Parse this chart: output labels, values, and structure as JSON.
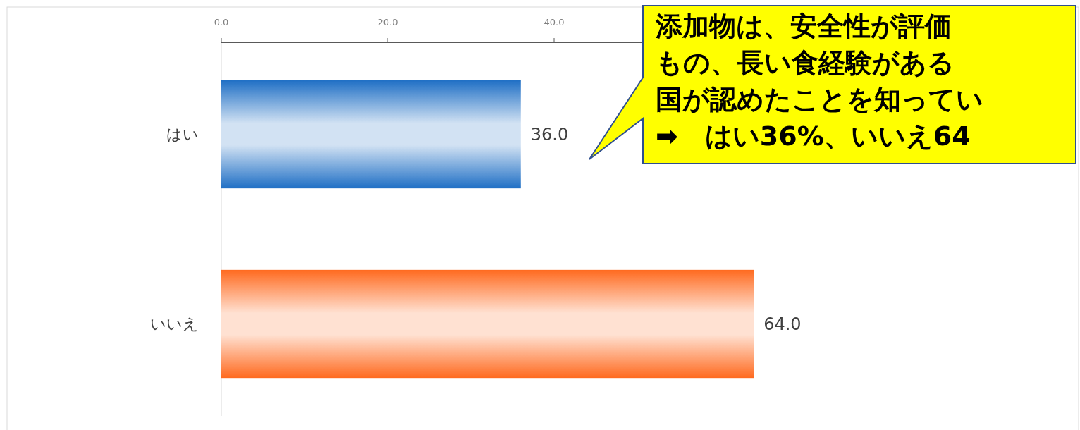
{
  "chart_data": {
    "type": "bar",
    "orientation": "horizontal",
    "categories": [
      "はい",
      "いいえ"
    ],
    "values": [
      36,
      64
    ],
    "colors": [
      "#1f6fc5",
      "#ff6a1f"
    ],
    "value_labels": [
      "36.0",
      "64.0"
    ],
    "xlim": [
      0,
      100
    ],
    "xticks": [
      {
        "value": 0,
        "label": "0.0"
      },
      {
        "value": 20,
        "label": "20.0"
      },
      {
        "value": 40,
        "label": "40.0"
      }
    ],
    "grid": false,
    "annotations": [
      "添加物は、安全性が評価",
      "もの、長い食経験がある",
      "国が認めたことを知ってい",
      "➡　はい36%、いいえ64"
    ]
  }
}
